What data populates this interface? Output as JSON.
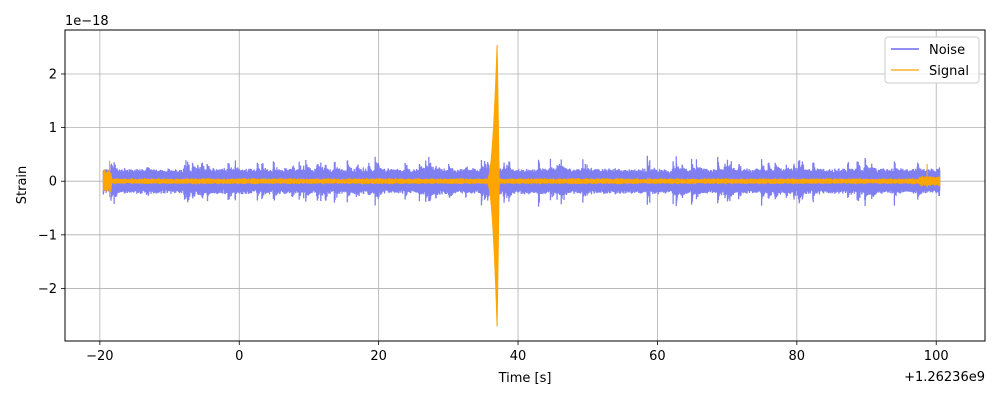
{
  "chart_data": {
    "type": "line",
    "title": "",
    "xlabel": "Time [s]",
    "ylabel": "Strain",
    "xlim": [
      -25,
      107
    ],
    "ylim": [
      -2.98,
      2.82
    ],
    "x_ticks": [
      -20,
      0,
      20,
      40,
      60,
      80,
      100
    ],
    "x_tick_labels": [
      "−20",
      "0",
      "20",
      "40",
      "60",
      "80",
      "100"
    ],
    "y_ticks": [
      -2,
      -1,
      0,
      1,
      2
    ],
    "y_tick_labels": [
      "−2",
      "−1",
      "0",
      "1",
      "2"
    ],
    "x_offset_label": "+1.26236e9",
    "y_multiplier_label": "1e−18",
    "grid": true,
    "legend_position": "upper-right",
    "series": [
      {
        "name": "Noise",
        "color": "#7f7ff2",
        "x_range": [
          -19.5,
          100.5
        ],
        "typical_amplitude": 0.25,
        "peak_amplitude": 0.58
      },
      {
        "name": "Signal",
        "color": "#ffa500",
        "x_range": [
          -19.5,
          100.5
        ],
        "typical_amplitude": 0.05,
        "event_time": 37.0,
        "event_peak_max": 2.55,
        "event_peak_min": -2.72
      }
    ]
  }
}
